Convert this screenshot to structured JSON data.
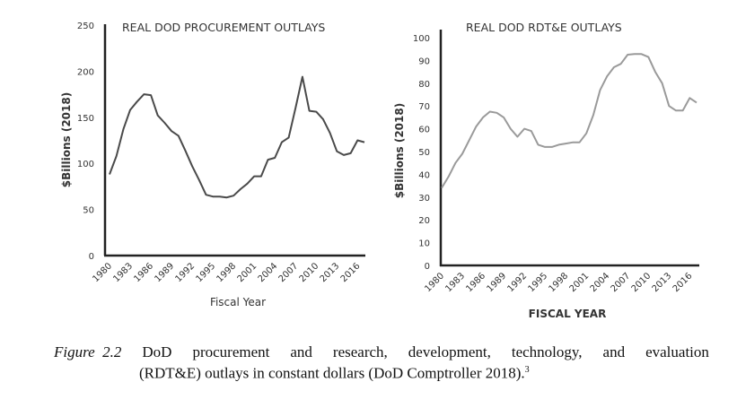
{
  "chart_data": [
    {
      "type": "line",
      "title": "REAL DOD PROCUREMENT OUTLAYS",
      "xlabel": "Fiscal Year",
      "ylabel": "$Billions (2018)",
      "ylim": [
        0,
        250
      ],
      "yticks": [
        0,
        50,
        100,
        150,
        200,
        250
      ],
      "xticks": [
        "1980",
        "1983",
        "1986",
        "1989",
        "1992",
        "1995",
        "1998",
        "2001",
        "2004",
        "2007",
        "2010",
        "2013",
        "2016"
      ],
      "grid": false,
      "line_color": "#4a4a4a",
      "x": [
        1980,
        1981,
        1982,
        1983,
        1984,
        1985,
        1986,
        1987,
        1988,
        1989,
        1990,
        1991,
        1992,
        1993,
        1994,
        1995,
        1996,
        1997,
        1998,
        1999,
        2000,
        2001,
        2002,
        2003,
        2004,
        2005,
        2006,
        2007,
        2008,
        2009,
        2010,
        2011,
        2012,
        2013,
        2014,
        2015,
        2016,
        2017
      ],
      "values": [
        88,
        108,
        137,
        158,
        167,
        175,
        174,
        152,
        144,
        135,
        130,
        114,
        97,
        82,
        66,
        64,
        64,
        63,
        65,
        72,
        78,
        86,
        86,
        104,
        106,
        123,
        128,
        160,
        194,
        157,
        156,
        148,
        133,
        113,
        109,
        111,
        125,
        123
      ]
    },
    {
      "type": "line",
      "title": "REAL DOD RDT&E OUTLAYS",
      "xlabel": "FISCAL YEAR",
      "ylabel": "$Billions (2018)",
      "ylim": [
        0,
        100
      ],
      "yticks": [
        0,
        10,
        20,
        30,
        40,
        50,
        60,
        70,
        80,
        90,
        100
      ],
      "xticks": [
        "1980",
        "1983",
        "1986",
        "1989",
        "1992",
        "1995",
        "1998",
        "2001",
        "2004",
        "2007",
        "2010",
        "2013",
        "2016"
      ],
      "grid": false,
      "line_color": "#9a9a9a",
      "x": [
        1980,
        1981,
        1982,
        1983,
        1984,
        1985,
        1986,
        1987,
        1988,
        1989,
        1990,
        1991,
        1992,
        1993,
        1994,
        1995,
        1996,
        1997,
        1998,
        1999,
        2000,
        2001,
        2002,
        2003,
        2004,
        2005,
        2006,
        2007,
        2008,
        2009,
        2010,
        2011,
        2012,
        2013,
        2014,
        2015,
        2016,
        2017
      ],
      "values": [
        34,
        39,
        45,
        49,
        55,
        61,
        65,
        67.5,
        67,
        65,
        60,
        56.5,
        60,
        59,
        53,
        52,
        52,
        53,
        53.5,
        54,
        54,
        58,
        66,
        77,
        83,
        87,
        88.5,
        92.5,
        92.8,
        92.8,
        91.5,
        85,
        80,
        70,
        68,
        68,
        73.5,
        71.5
      ]
    }
  ],
  "caption": {
    "label": "Figure",
    "number": "2.2",
    "line1_words": [
      "DoD",
      "procurement",
      "and",
      "research,",
      "development,",
      "technology,",
      "and",
      "evaluation"
    ],
    "line2": "(RDT&E) outlays in constant dollars (DoD Comptroller 2018).",
    "footnote": "3"
  }
}
